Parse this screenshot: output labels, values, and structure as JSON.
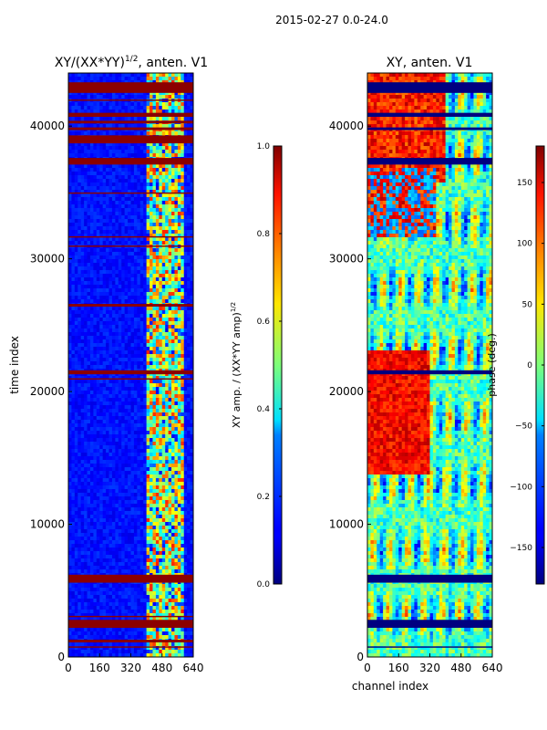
{
  "figure": {
    "suptitle": "2015-02-27 0.0-24.0"
  },
  "chart_data": [
    {
      "type": "heatmap",
      "title": "XY/(XX*YY)",
      "title_power": "1/2",
      "title_suffix": ", anten. V1",
      "ylabel": "time index",
      "xlabel": "",
      "xlim": [
        0,
        640
      ],
      "ylim": [
        0,
        44000
      ],
      "xticks": [
        0,
        160,
        320,
        480,
        640
      ],
      "yticks": [
        0,
        10000,
        20000,
        30000,
        40000
      ],
      "colormap": "jet",
      "colorbar": {
        "label": "XY amp. / (XX*YY amp)",
        "label_power": "1/2",
        "range": [
          0.0,
          1.0
        ],
        "ticks": [
          0.0,
          0.2,
          0.4,
          0.6,
          0.8,
          1.0
        ],
        "tick_labels": [
          "0.0",
          "0.2",
          "0.4",
          "0.6",
          "0.8",
          "1.0"
        ]
      },
      "flagged_rows": [
        [
          42500,
          43300
        ],
        [
          41900,
          42000
        ],
        [
          40700,
          41000
        ],
        [
          40200,
          40400
        ],
        [
          39700,
          39900
        ],
        [
          38700,
          39300
        ],
        [
          37100,
          37600
        ],
        [
          34900,
          35000
        ],
        [
          31600,
          31700
        ],
        [
          30900,
          31000
        ],
        [
          26400,
          26600
        ],
        [
          21300,
          21600
        ],
        [
          20900,
          21000
        ],
        [
          5600,
          6200
        ],
        [
          3000,
          3100
        ],
        [
          2200,
          2800
        ],
        [
          1100,
          1300
        ],
        [
          700,
          800
        ]
      ]
    },
    {
      "type": "heatmap",
      "title": "XY, anten. V1",
      "ylabel": "",
      "xlabel": "channel index",
      "xlim": [
        0,
        640
      ],
      "ylim": [
        0,
        44000
      ],
      "xticks": [
        0,
        160,
        320,
        480,
        640
      ],
      "yticks": [
        0,
        10000,
        20000,
        30000,
        40000
      ],
      "colormap": "jet",
      "colorbar": {
        "label": "phase (deg.)",
        "range": [
          -180,
          180
        ],
        "ticks": [
          -150,
          -100,
          -50,
          0,
          50,
          100,
          150
        ],
        "tick_labels": [
          "−150",
          "−100",
          "−50",
          "0",
          "50",
          "100",
          "150"
        ]
      },
      "flagged_rows": [
        [
          42500,
          43300
        ],
        [
          40700,
          41000
        ],
        [
          39700,
          39900
        ],
        [
          37100,
          37600
        ],
        [
          21300,
          21600
        ],
        [
          5600,
          6200
        ],
        [
          2200,
          2800
        ],
        [
          700,
          800
        ]
      ]
    }
  ]
}
